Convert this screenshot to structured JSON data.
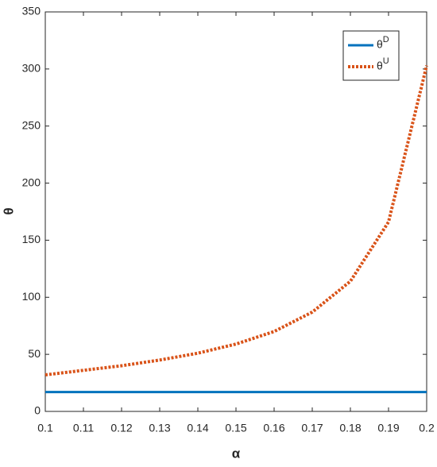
{
  "chart_data": {
    "type": "line",
    "x_label": "α",
    "y_label": "θ",
    "x": [
      0.1,
      0.11,
      0.12,
      0.13,
      0.14,
      0.15,
      0.16,
      0.17,
      0.18,
      0.19,
      0.2
    ],
    "series": [
      {
        "name": "θD",
        "color": "#0072bd",
        "style": "solid",
        "values": [
          17,
          17,
          17,
          17,
          17,
          17,
          17,
          17,
          17,
          17,
          17
        ]
      },
      {
        "name": "θU",
        "color": "#d95319",
        "style": "dotted",
        "values": [
          32,
          36,
          40,
          45,
          51,
          59,
          70,
          87,
          114,
          166,
          303
        ]
      }
    ],
    "xlim": [
      0.1,
      0.2
    ],
    "xticks": [
      0.1,
      0.11,
      0.12,
      0.13,
      0.14,
      0.15,
      0.16,
      0.17,
      0.18,
      0.19,
      0.2
    ],
    "ylim": [
      0,
      350
    ],
    "yticks": [
      0,
      50,
      100,
      150,
      200,
      250,
      300,
      350
    ],
    "legend": "upper-right",
    "grid": false
  }
}
